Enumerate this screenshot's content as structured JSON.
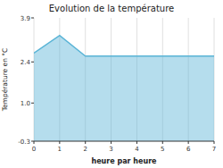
{
  "chart_data": {
    "type": "area",
    "title": "Evolution de la température",
    "x_label": "heure par heure",
    "y_label": "Température en °C",
    "x": [
      0,
      1,
      2,
      3,
      4,
      5,
      6,
      7
    ],
    "values": [
      2.7,
      3.3,
      2.6,
      2.6,
      2.6,
      2.6,
      2.6,
      2.6
    ],
    "color": "#5ab4d6",
    "xlim": [
      0,
      7
    ],
    "ylim": [
      -0.3,
      3.9
    ],
    "xticks": [
      0,
      1,
      2,
      3,
      4,
      5,
      6,
      7
    ],
    "yticks": [
      -0.3,
      {
        "value": 1.0,
        "label": "1.0"
      },
      2.4,
      3.9
    ],
    "grid": "x"
  }
}
